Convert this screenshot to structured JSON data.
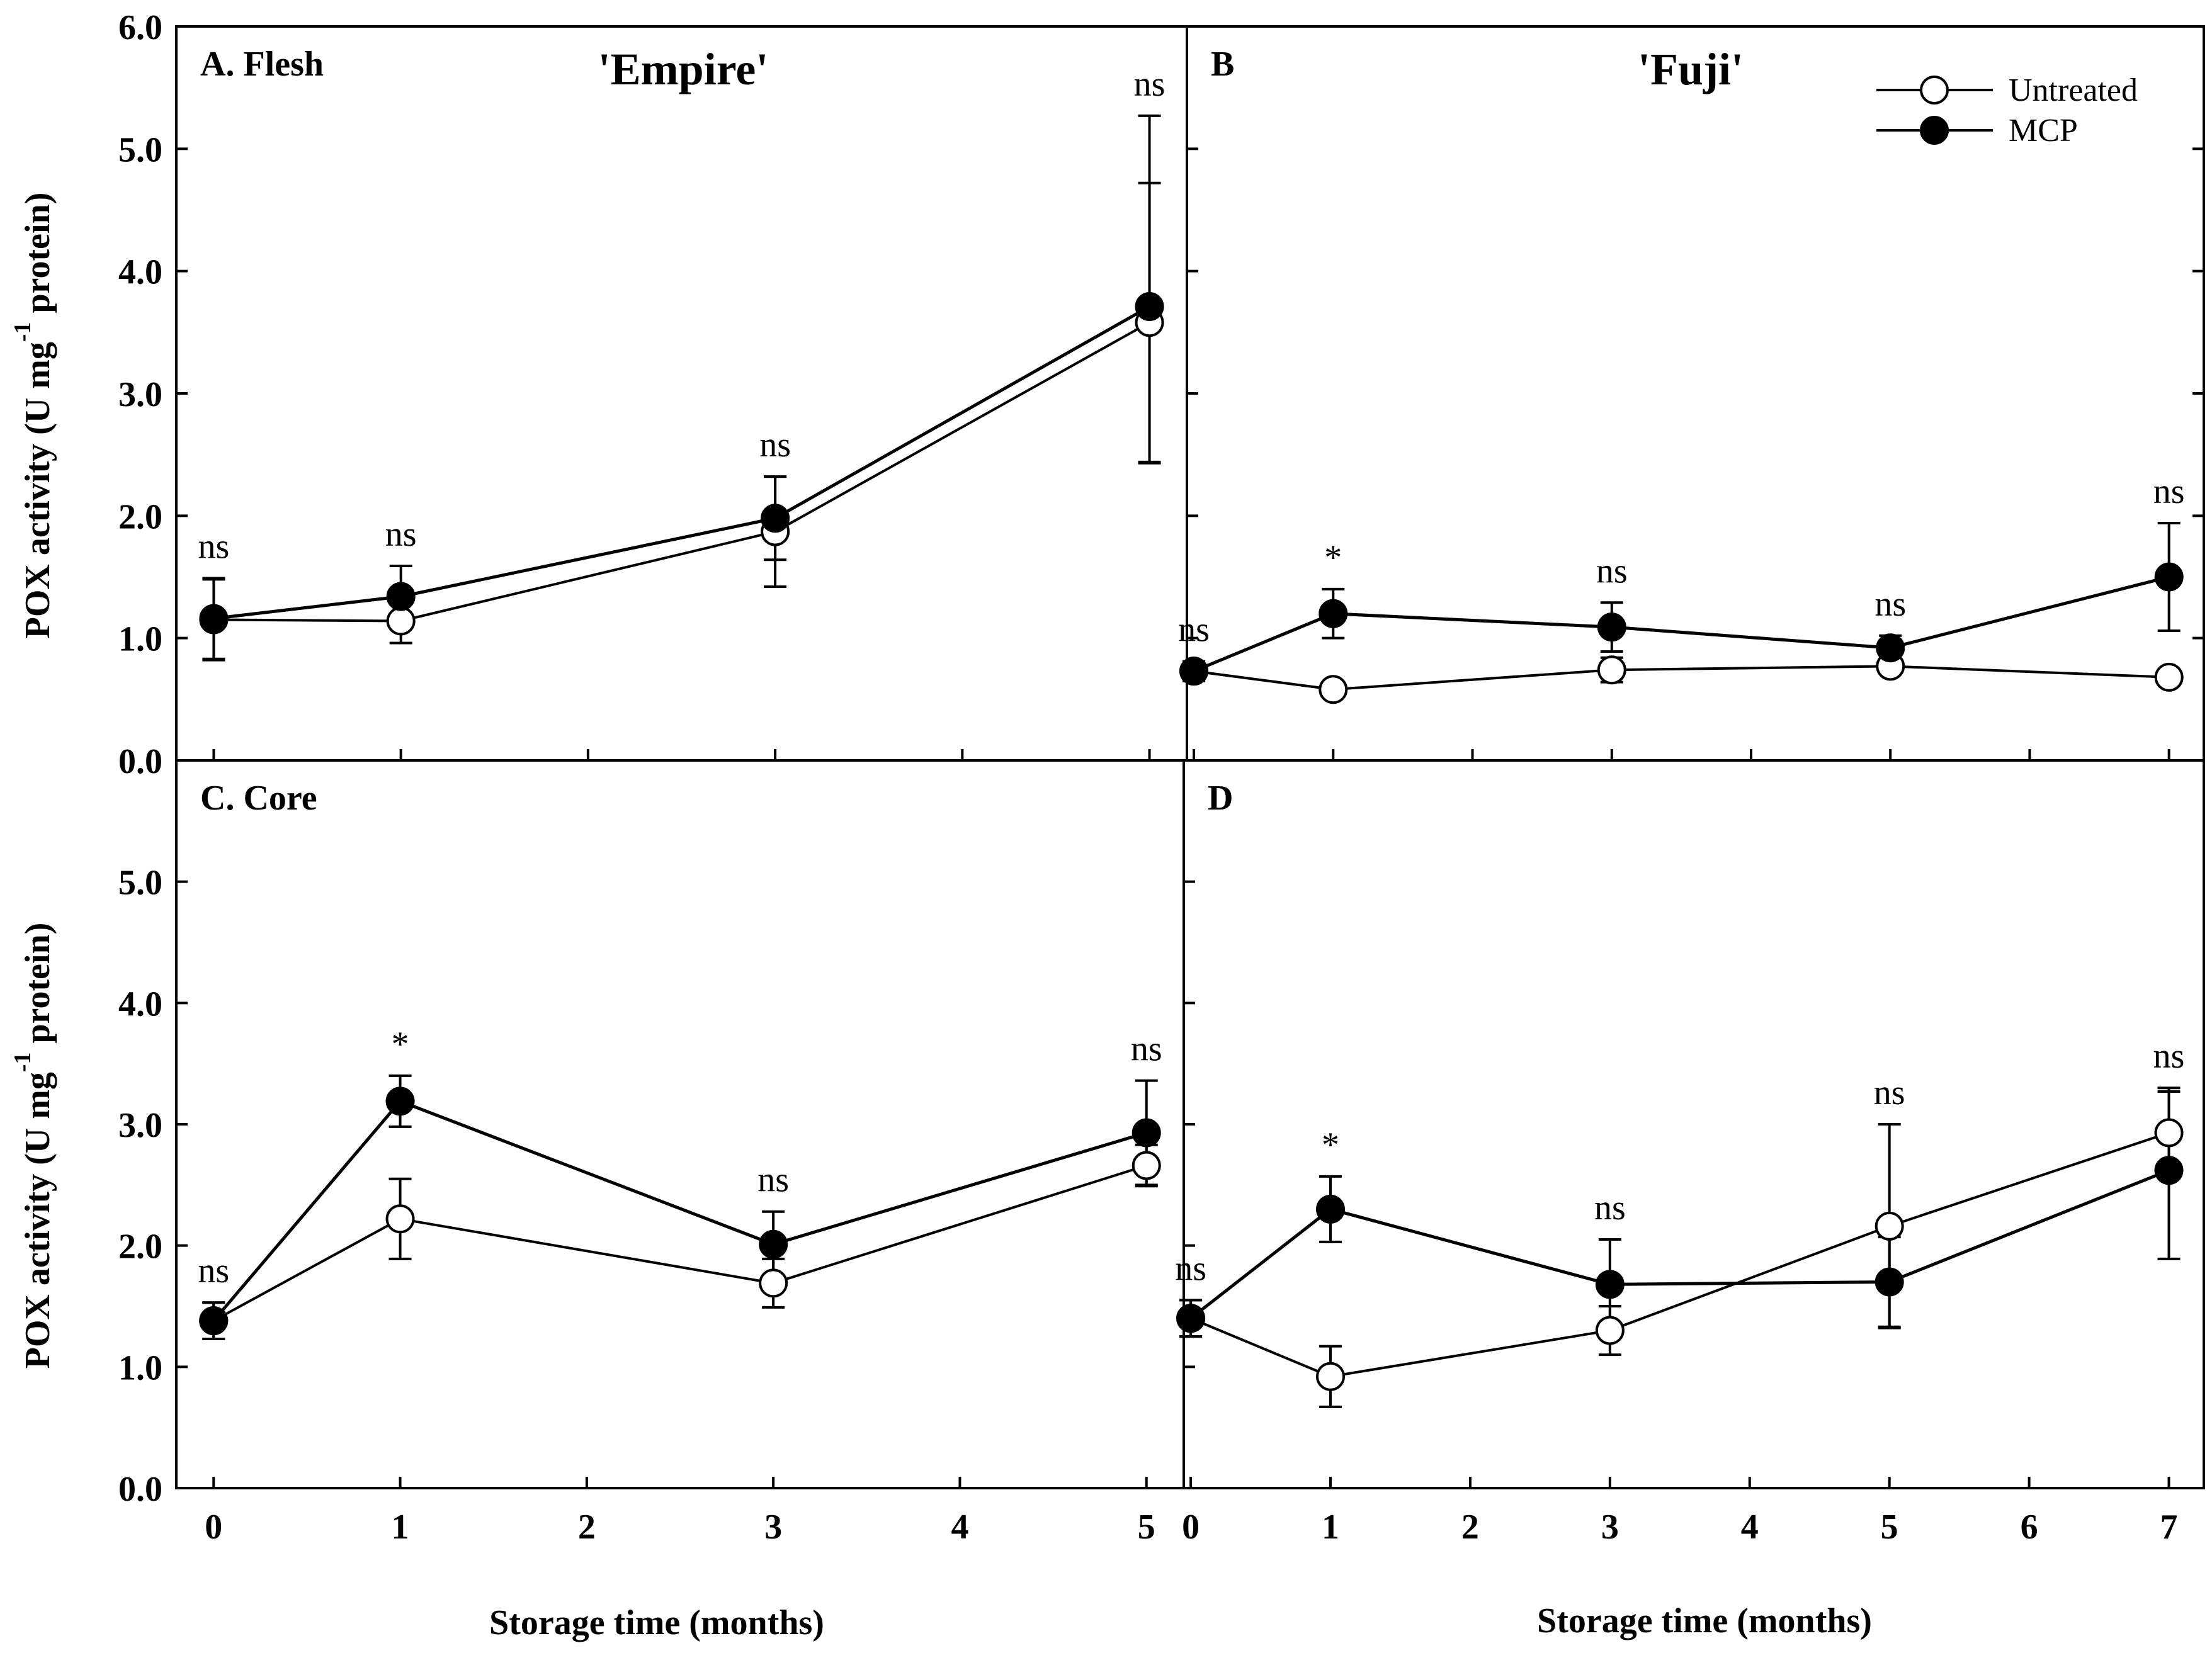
{
  "figure": {
    "y_axis_label": "POX activity (U mg",
    "y_axis_label_sup": "-1",
    "y_axis_label_tail": " protein)",
    "x_axis_label": "Storage time (months)",
    "legend": [
      {
        "label": "Untreated",
        "marker": "open-circle"
      },
      {
        "label": "MCP",
        "marker": "filled-circle"
      }
    ],
    "colors": {
      "line": "#000000",
      "untreated_fill": "#ffffff",
      "mcp_fill": "#000000"
    }
  },
  "chart_data": [
    {
      "type": "line",
      "panel": "A",
      "panel_label": "A. Flesh",
      "cultivar": "'Empire'",
      "x": [
        0,
        1,
        3,
        5
      ],
      "xticks": [
        "0",
        "1",
        "2",
        "3",
        "4",
        "5"
      ],
      "xlim": [
        -0.2,
        5.2
      ],
      "ylim": [
        0,
        6
      ],
      "yticks": [
        "0.0",
        "1.0",
        "2.0",
        "3.0",
        "4.0",
        "5.0",
        "6.0"
      ],
      "series": [
        {
          "name": "Untreated",
          "values": [
            1.15,
            1.14,
            1.87,
            3.58
          ],
          "err_up": [
            0.33,
            0.19,
            0.45,
            1.14
          ],
          "err_down": [
            0.33,
            0.18,
            0.45,
            1.14
          ]
        },
        {
          "name": "MCP",
          "values": [
            1.16,
            1.34,
            1.98,
            3.71
          ],
          "err_up": [
            0.33,
            0.25,
            0.34,
            1.56
          ],
          "err_down": [
            0.33,
            0.25,
            0.34,
            1.28
          ]
        }
      ],
      "annotations": [
        "ns",
        "ns",
        "ns",
        "ns"
      ]
    },
    {
      "type": "line",
      "panel": "B",
      "panel_label": "B",
      "cultivar": "'Fuji'",
      "x": [
        0,
        1,
        3,
        5,
        7
      ],
      "xticks": [
        "0",
        "1",
        "2",
        "3",
        "4",
        "5",
        "6",
        "7"
      ],
      "xlim": [
        -0.05,
        7.25
      ],
      "ylim": [
        0,
        6
      ],
      "series": [
        {
          "name": "Untreated",
          "values": [
            0.73,
            0.58,
            0.74,
            0.77,
            0.68
          ],
          "err_up": [
            0.08,
            0.03,
            0.1,
            0.06,
            0.03
          ],
          "err_down": [
            0.08,
            0.03,
            0.1,
            0.06,
            0.03
          ]
        },
        {
          "name": "MCP",
          "values": [
            0.73,
            1.2,
            1.09,
            0.92,
            1.5
          ],
          "err_up": [
            0.08,
            0.2,
            0.2,
            0.1,
            0.44
          ],
          "err_down": [
            0.08,
            0.2,
            0.2,
            0.1,
            0.44
          ]
        }
      ],
      "annotations": [
        "ns",
        "*",
        "ns",
        "ns",
        "ns"
      ]
    },
    {
      "type": "line",
      "panel": "C",
      "panel_label": "C. Core",
      "x": [
        0,
        1,
        3,
        5
      ],
      "xticks": [
        "0",
        "1",
        "2",
        "3",
        "4",
        "5"
      ],
      "xlim": [
        -0.2,
        5.2
      ],
      "ylim": [
        0,
        6
      ],
      "yticks": [
        "0.0",
        "1.0",
        "2.0",
        "3.0",
        "4.0",
        "5.0",
        ""
      ],
      "series": [
        {
          "name": "Untreated",
          "values": [
            1.38,
            2.22,
            1.69,
            2.66
          ],
          "err_up": [
            0.15,
            0.33,
            0.2,
            0.17
          ],
          "err_down": [
            0.15,
            0.33,
            0.2,
            0.17
          ]
        },
        {
          "name": "MCP",
          "values": [
            1.38,
            3.19,
            2.01,
            2.93
          ],
          "err_up": [
            0.15,
            0.21,
            0.27,
            0.43
          ],
          "err_down": [
            0.15,
            0.21,
            0.27,
            0.43
          ]
        }
      ],
      "annotations": [
        "ns",
        "*",
        "ns",
        "ns"
      ]
    },
    {
      "type": "line",
      "panel": "D",
      "panel_label": "D",
      "x": [
        0,
        1,
        3,
        5,
        7
      ],
      "xticks": [
        "0",
        "1",
        "2",
        "3",
        "4",
        "5",
        "6",
        "7"
      ],
      "xlim": [
        -0.05,
        7.25
      ],
      "ylim": [
        0,
        6
      ],
      "series": [
        {
          "name": "Untreated",
          "values": [
            1.4,
            0.92,
            1.3,
            2.16,
            2.93
          ],
          "err_up": [
            0.15,
            0.25,
            0.2,
            0.84,
            0.34
          ],
          "err_down": [
            0.15,
            0.25,
            0.2,
            0.84,
            0.34
          ]
        },
        {
          "name": "MCP",
          "values": [
            1.4,
            2.3,
            1.68,
            1.7,
            2.62
          ],
          "err_up": [
            0.15,
            0.27,
            0.37,
            0.37,
            0.68
          ],
          "err_down": [
            0.15,
            0.27,
            0.37,
            0.37,
            0.73
          ]
        }
      ],
      "annotations": [
        "ns",
        "*",
        "ns",
        "ns",
        "ns"
      ]
    }
  ]
}
